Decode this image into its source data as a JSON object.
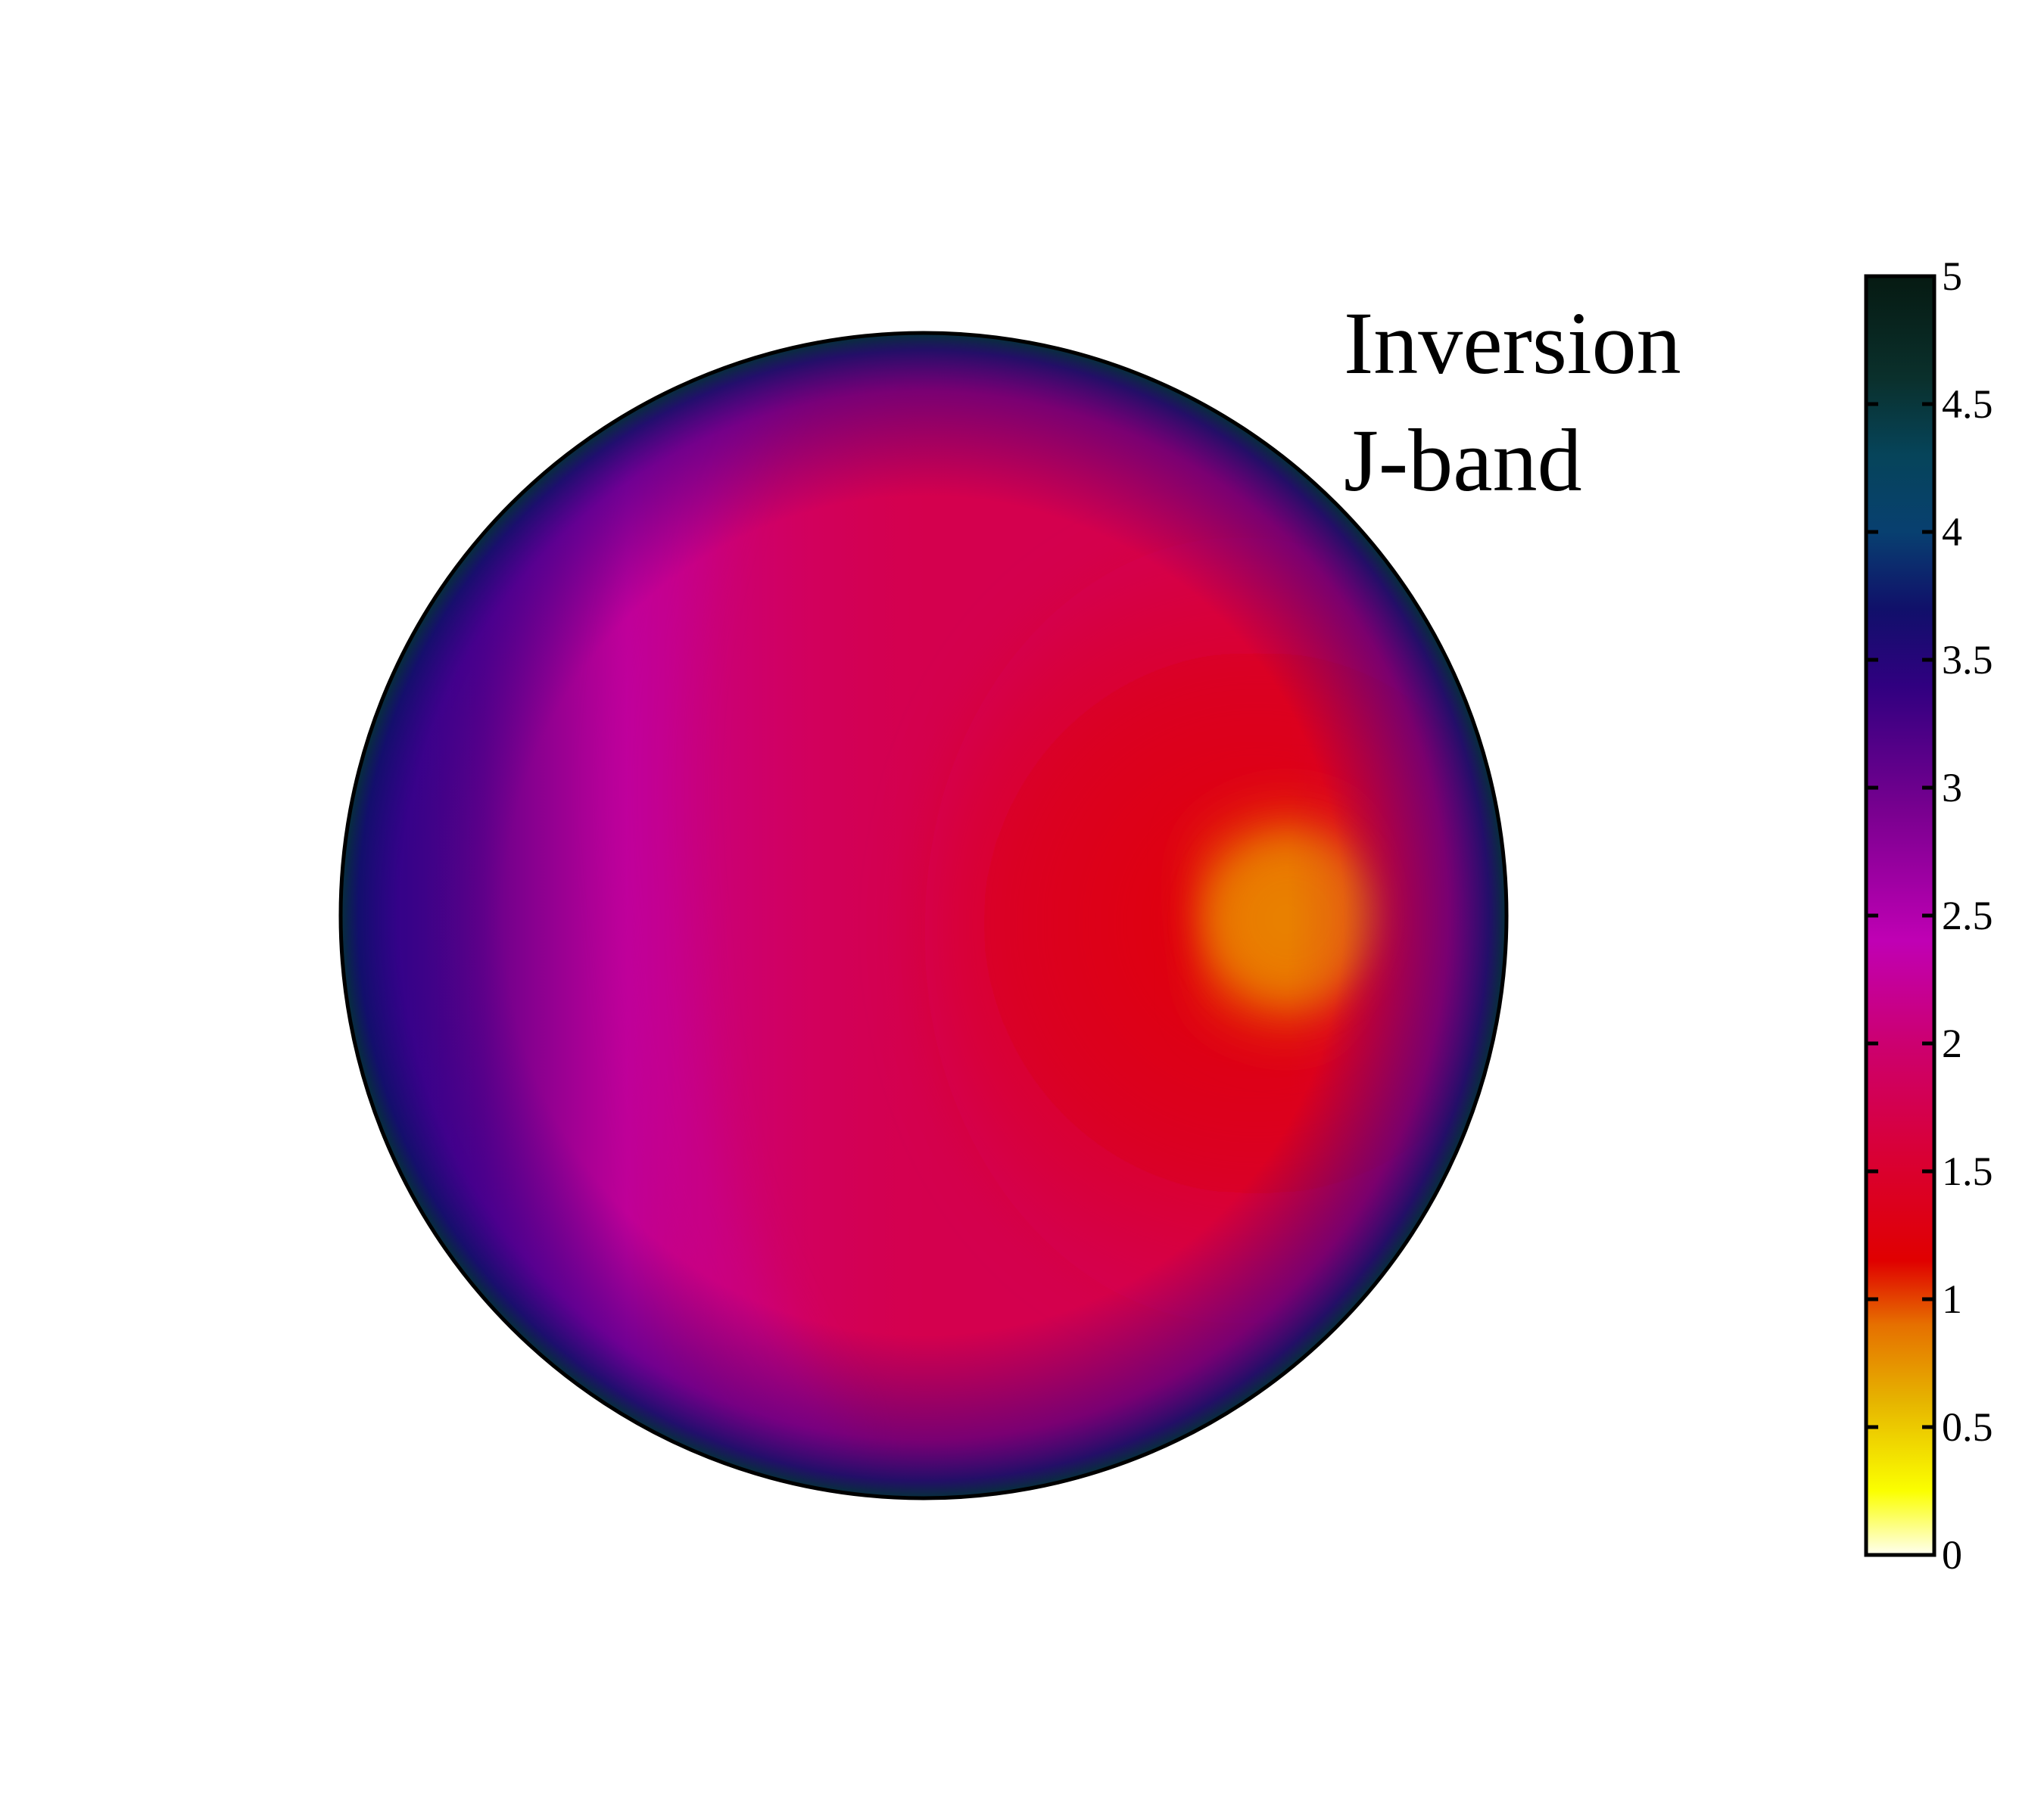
{
  "chart_data": {
    "type": "heatmap",
    "title_lines": [
      "Inversion",
      "J-band"
    ],
    "colorbar": {
      "range": [
        0,
        5
      ],
      "ticks": [
        0,
        0.5,
        1,
        1.5,
        2,
        2.5,
        3,
        3.5,
        4,
        4.5,
        5
      ],
      "tick_labels": [
        "0",
        "0.5",
        "1",
        "1.5",
        "2",
        "2.5",
        "3",
        "3.5",
        "4",
        "4.5",
        "5"
      ],
      "colormap": [
        {
          "value": 0.0,
          "color": "#fffff0"
        },
        {
          "value": 0.25,
          "color": "#fbff00"
        },
        {
          "value": 0.6,
          "color": "#e6b400"
        },
        {
          "value": 0.9,
          "color": "#e67000"
        },
        {
          "value": 1.15,
          "color": "#e00000"
        },
        {
          "value": 1.6,
          "color": "#d8003a"
        },
        {
          "value": 2.0,
          "color": "#cc0070"
        },
        {
          "value": 2.4,
          "color": "#c000b4"
        },
        {
          "value": 2.9,
          "color": "#7a0090"
        },
        {
          "value": 3.4,
          "color": "#300080"
        },
        {
          "value": 3.7,
          "color": "#10106a"
        },
        {
          "value": 4.0,
          "color": "#084070"
        },
        {
          "value": 4.3,
          "color": "#06445a"
        },
        {
          "value": 4.6,
          "color": "#0a302c"
        },
        {
          "value": 5.0,
          "color": "#061a12"
        }
      ]
    },
    "disk_features": [
      {
        "feature": "limb",
        "value": 3.7
      },
      {
        "feature": "east-half",
        "value": 2.3
      },
      {
        "feature": "disk-center",
        "value": 1.6
      },
      {
        "feature": "west-region",
        "value": 1.2
      },
      {
        "feature": "bright-spot",
        "value": 0.9
      }
    ],
    "grid": false,
    "legend": "right"
  }
}
